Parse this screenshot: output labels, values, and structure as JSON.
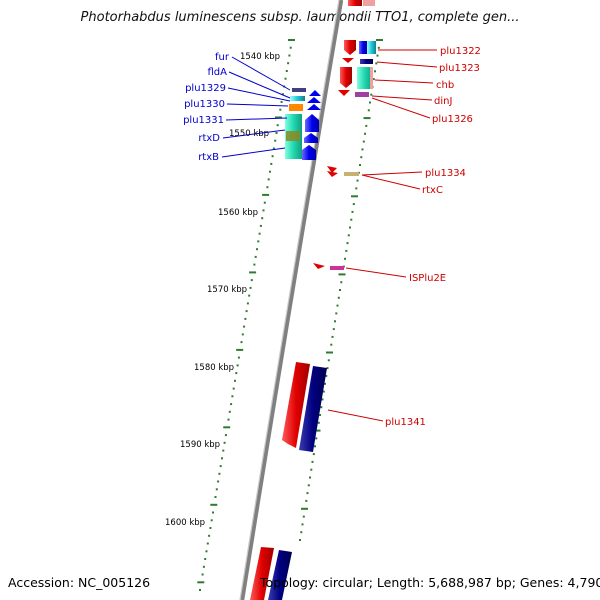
{
  "title": "Photorhabdus luminescens subsp. laumondii TTO1, complete gen...",
  "footer": {
    "accession": "Accession: NC_005126",
    "summary": "Topology: circular; Length: 5,688,987 bp; Genes: 4,790"
  },
  "ruler_labels": [
    "1540 kbp",
    "1550 kbp",
    "1560 kbp",
    "1570 kbp",
    "1580 kbp",
    "1590 kbp",
    "1600 kbp"
  ],
  "left_genes": [
    "fur",
    "fldA",
    "plu1329",
    "plu1330",
    "plu1331",
    "rtxD",
    "rtxB"
  ],
  "right_genes": [
    "plu1322",
    "plu1323",
    "chb",
    "dinJ",
    "plu1326",
    "plu1334",
    "rtxC",
    "ISPlu2E",
    "plu1341"
  ],
  "colors": {
    "left_label": "#0000cc",
    "right_label": "#cc0000",
    "backbone": "#808080",
    "tick": "#2e7d2e",
    "forward_strand": "#0000cc",
    "reverse_strand": "#e60000"
  }
}
